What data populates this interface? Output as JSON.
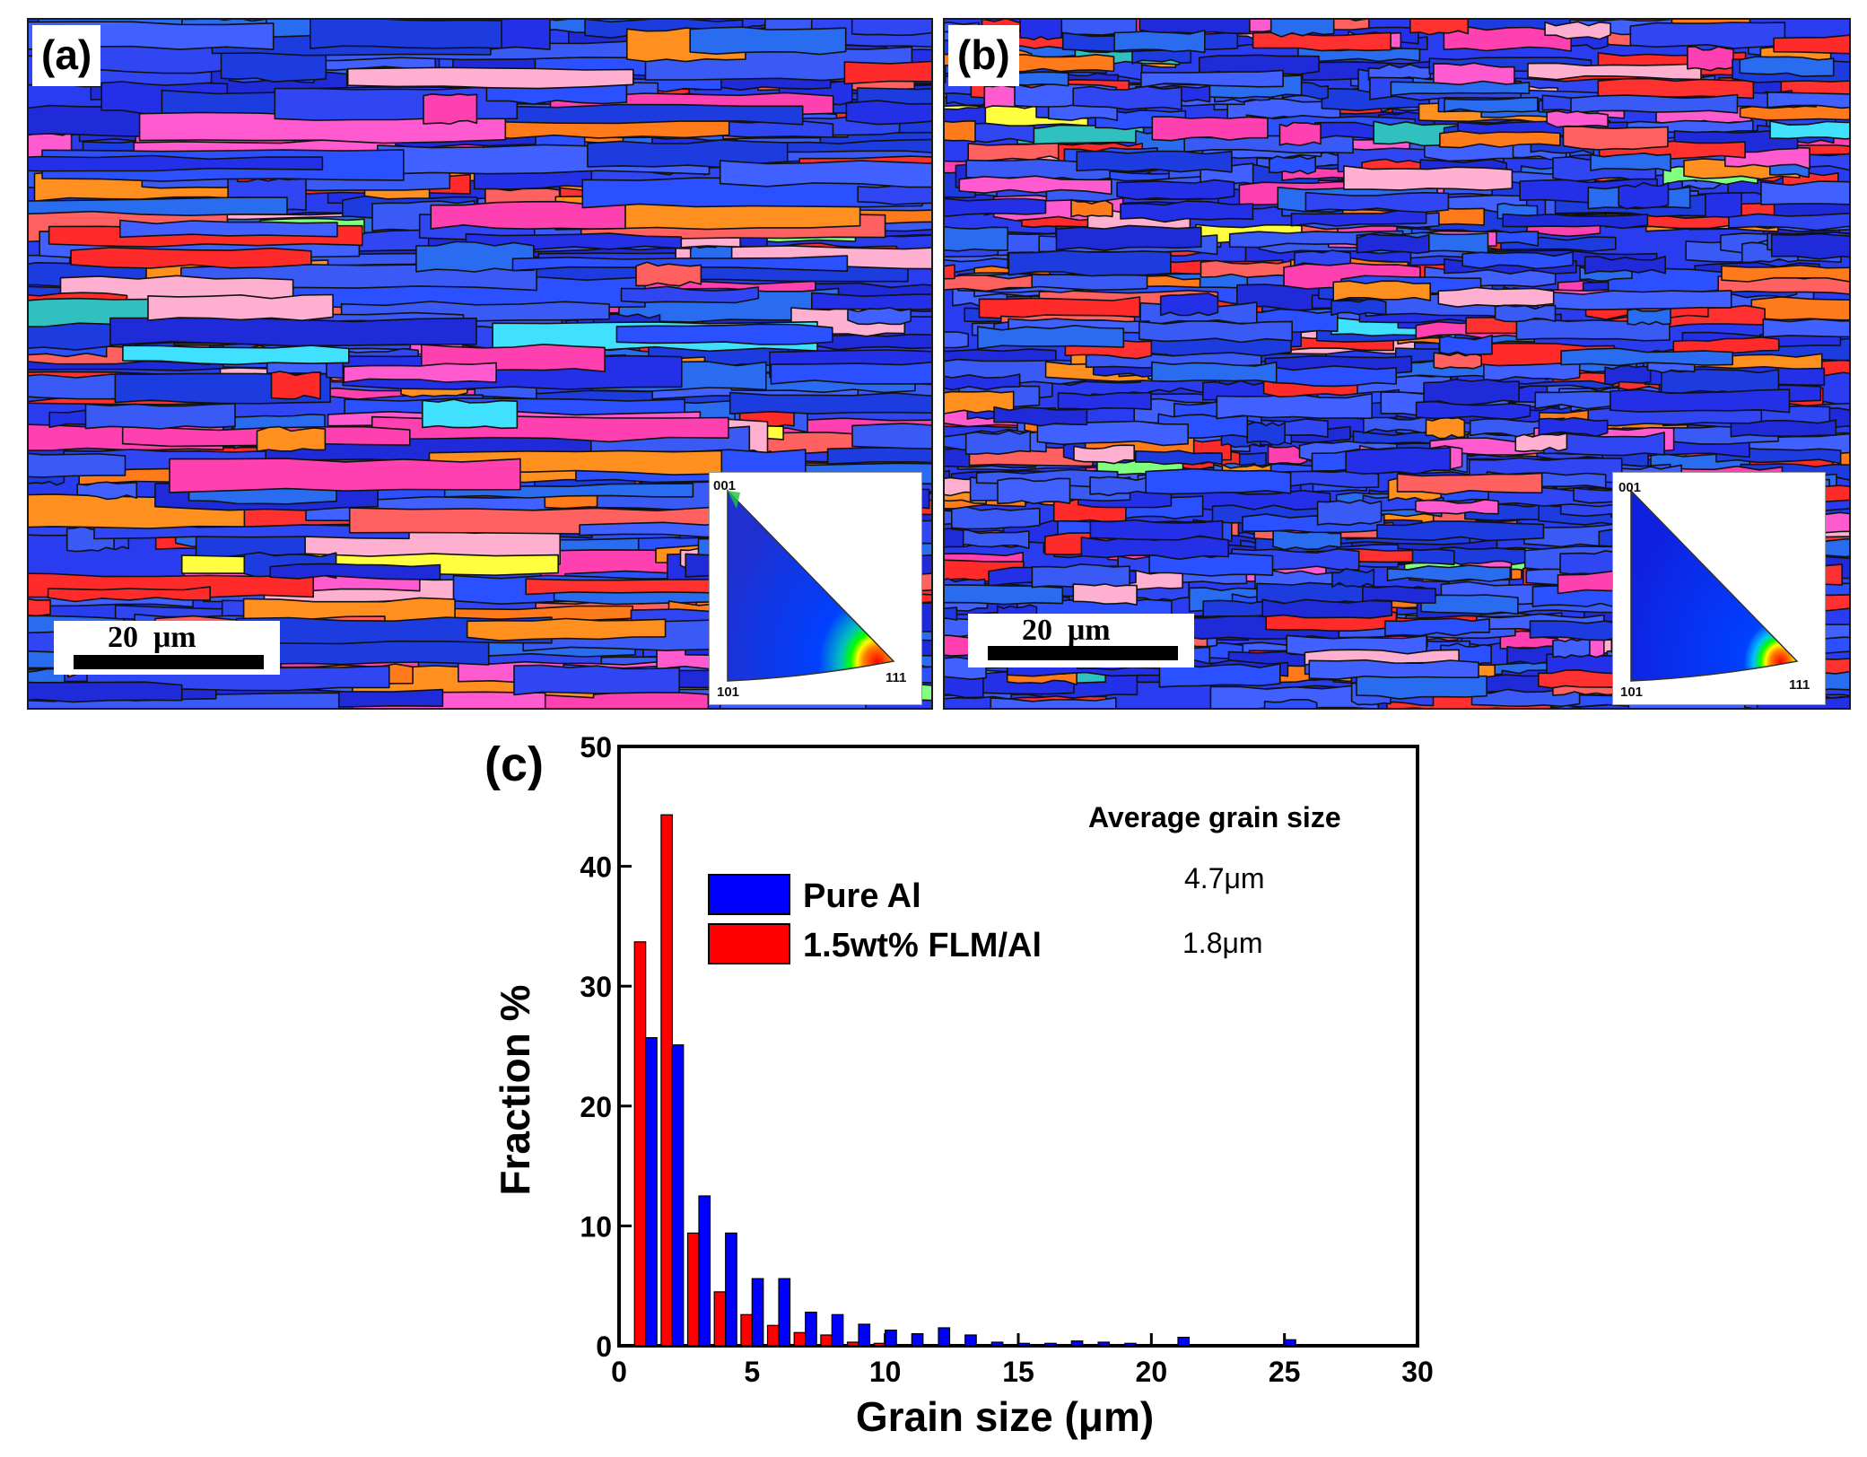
{
  "panels": {
    "a": {
      "label": "(a)",
      "scale_bar": "20  μm",
      "ipf_labels": {
        "top": "001",
        "bottom_left": "101",
        "bottom_right": "111"
      }
    },
    "b": {
      "label": "(b)",
      "scale_bar": "20  μm",
      "ipf_labels": {
        "top": "001",
        "bottom_left": "101",
        "bottom_right": "111"
      }
    }
  },
  "colors": {
    "pure_al": "#0000ff",
    "flm_al": "#ff0000",
    "ebsd_blue": "#2a3cf0",
    "ebsd_red": "#ff2a2a",
    "ebsd_orange": "#ff7a1a",
    "ebsd_pink": "#ff5ad0"
  },
  "chart_data": {
    "type": "bar",
    "panel_label": "(c)",
    "xlabel": "Grain size (μm)",
    "ylabel": "Fraction %",
    "xlim": [
      0,
      30
    ],
    "ylim": [
      0,
      50
    ],
    "xticks": [
      0,
      5,
      10,
      15,
      20,
      25,
      30
    ],
    "yticks": [
      0,
      10,
      20,
      30,
      40,
      50
    ],
    "x": [
      1,
      2,
      3,
      4,
      5,
      6,
      7,
      8,
      9,
      10,
      11,
      12,
      13,
      14,
      15,
      16,
      17,
      18,
      19,
      20,
      21,
      22,
      23,
      24,
      25
    ],
    "series": [
      {
        "name": "1.5wt% FLM/Al",
        "color": "#ff0000",
        "values": [
          33.7,
          44.3,
          9.4,
          4.5,
          2.6,
          1.7,
          1.1,
          0.9,
          0.3,
          0.2,
          0.1,
          0.1,
          0,
          0,
          0,
          0,
          0,
          0,
          0,
          0,
          0,
          0,
          0,
          0,
          0
        ]
      },
      {
        "name": "Pure Al",
        "color": "#0000ff",
        "values": [
          25.7,
          25.1,
          12.5,
          9.4,
          5.6,
          5.6,
          2.8,
          2.6,
          1.8,
          1.3,
          1.0,
          1.5,
          0.9,
          0.3,
          0.2,
          0.2,
          0.4,
          0.3,
          0.2,
          0.1,
          0.7,
          0.1,
          0.1,
          0.1,
          0.5
        ]
      }
    ],
    "legend": [
      {
        "name": "Pure Al",
        "color": "#0000ff"
      },
      {
        "name": "1.5wt% FLM/Al",
        "color": "#ff0000"
      }
    ],
    "annotation": {
      "title": "Average grain size",
      "values": [
        "4.7μm",
        "1.8μm"
      ]
    }
  }
}
